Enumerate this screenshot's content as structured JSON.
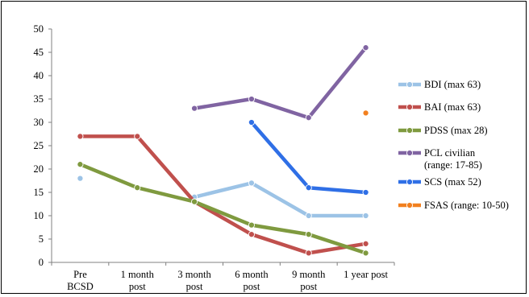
{
  "chart_data": {
    "type": "line",
    "title": "",
    "xlabel": "",
    "ylabel": "",
    "ylim": [
      0,
      50
    ],
    "yticks": [
      0,
      5,
      10,
      15,
      20,
      25,
      30,
      35,
      40,
      45,
      50
    ],
    "grid": false,
    "legend_position": "right",
    "categories": [
      [
        "Pre",
        "BCSD"
      ],
      [
        "1 month",
        "post"
      ],
      [
        "3 month",
        "post"
      ],
      [
        "6 month",
        "post"
      ],
      [
        "9 month",
        "post"
      ],
      [
        "1 year post"
      ]
    ],
    "series": [
      {
        "name": "BDI (max 63)",
        "color": "#9cc3e6",
        "values": [
          18,
          null,
          14,
          17,
          10,
          10
        ]
      },
      {
        "name": "BAI (max 63)",
        "color": "#c0504d",
        "values": [
          27,
          27,
          13,
          6,
          2,
          4
        ]
      },
      {
        "name": "PDSS (max 28)",
        "color": "#7f9a3f",
        "values": [
          21,
          16,
          13,
          8,
          6,
          2
        ]
      },
      {
        "name": [
          "PCL civilian",
          "(range: 17-85)"
        ],
        "color": "#8064a2",
        "values": [
          null,
          null,
          33,
          35,
          31,
          46
        ]
      },
      {
        "name": "SCS (max 52)",
        "color": "#2f6fe6",
        "values": [
          null,
          null,
          null,
          30,
          16,
          15
        ]
      },
      {
        "name": "FSAS (range: 10-50)",
        "color": "#f2801f",
        "values": [
          null,
          null,
          null,
          null,
          null,
          32
        ]
      }
    ]
  }
}
